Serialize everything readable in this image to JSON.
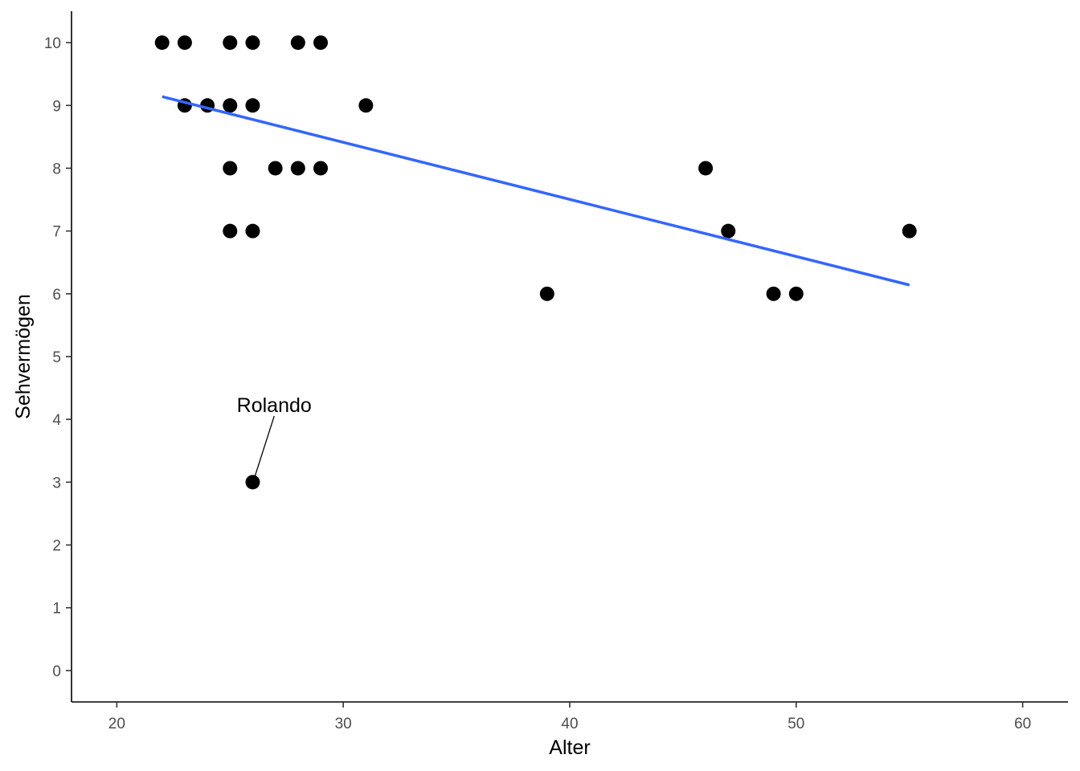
{
  "chart_data": {
    "type": "scatter",
    "title": "",
    "xlabel": "Alter",
    "ylabel": "Sehvermögen",
    "xlim": [
      18,
      62
    ],
    "ylim": [
      -0.5,
      10.5
    ],
    "x_ticks": [
      20,
      30,
      40,
      50,
      60
    ],
    "y_ticks": [
      0,
      1,
      2,
      3,
      4,
      5,
      6,
      7,
      8,
      9,
      10
    ],
    "x_tick_labels": [
      "20",
      "30",
      "40",
      "50",
      "60"
    ],
    "y_tick_labels": [
      "0",
      "1",
      "2",
      "3",
      "4",
      "5",
      "6",
      "7",
      "8",
      "9",
      "10"
    ],
    "grid": false,
    "points": [
      {
        "x": 22,
        "y": 10
      },
      {
        "x": 23,
        "y": 10
      },
      {
        "x": 25,
        "y": 10
      },
      {
        "x": 26,
        "y": 10
      },
      {
        "x": 28,
        "y": 10
      },
      {
        "x": 29,
        "y": 10
      },
      {
        "x": 23,
        "y": 9
      },
      {
        "x": 24,
        "y": 9
      },
      {
        "x": 25,
        "y": 9
      },
      {
        "x": 26,
        "y": 9
      },
      {
        "x": 31,
        "y": 9
      },
      {
        "x": 25,
        "y": 8
      },
      {
        "x": 27,
        "y": 8
      },
      {
        "x": 28,
        "y": 8
      },
      {
        "x": 29,
        "y": 8
      },
      {
        "x": 46,
        "y": 8
      },
      {
        "x": 25,
        "y": 7
      },
      {
        "x": 26,
        "y": 7
      },
      {
        "x": 47,
        "y": 7
      },
      {
        "x": 55,
        "y": 7
      },
      {
        "x": 39,
        "y": 6
      },
      {
        "x": 49,
        "y": 6
      },
      {
        "x": 50,
        "y": 6
      },
      {
        "x": 26,
        "y": 3
      }
    ],
    "point_color": "#000000",
    "trend_line": {
      "x": [
        22,
        55
      ],
      "y": [
        9.14,
        6.14
      ],
      "color": "#3366ff"
    },
    "annotations": [
      {
        "text": "Rolando",
        "point": {
          "x": 26,
          "y": 3
        },
        "label_at": {
          "x": 26.95,
          "y": 3.95
        }
      }
    ]
  }
}
